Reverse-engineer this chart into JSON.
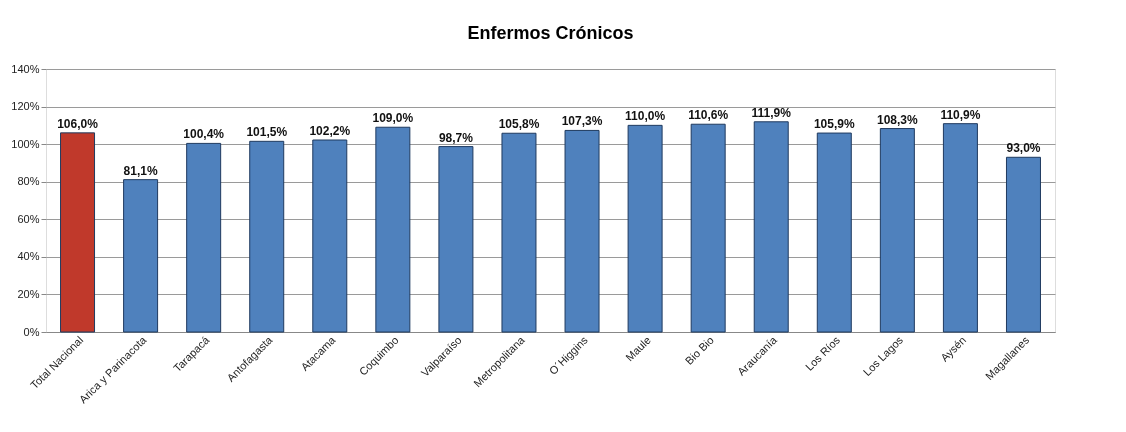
{
  "chart_data": {
    "type": "bar",
    "title": "Enfermos Crónicos",
    "categories": [
      "Total Nacional",
      "Arica y Parinacota",
      "Tarapacá",
      "Antofagasta",
      "Atacama",
      "Coquimbo",
      "Valparaíso",
      "Metropolitana",
      "O´Higgins",
      "Maule",
      "Bio Bio",
      "Araucanía",
      "Los Ríos",
      "Los Lagos",
      "Aysén",
      "Magallanes"
    ],
    "values": [
      106.0,
      81.1,
      100.4,
      101.5,
      102.2,
      109.0,
      98.7,
      105.8,
      107.3,
      110.0,
      110.6,
      111.9,
      105.9,
      108.3,
      110.9,
      93.0
    ],
    "value_labels": [
      "106,0%",
      "81,1%",
      "100,4%",
      "101,5%",
      "102,2%",
      "109,0%",
      "98,7%",
      "105,8%",
      "107,3%",
      "110,0%",
      "110,6%",
      "111,9%",
      "105,9%",
      "108,3%",
      "110,9%",
      "93,0%"
    ],
    "colors": [
      "#c0392b",
      "#4f81bd",
      "#4f81bd",
      "#4f81bd",
      "#4f81bd",
      "#4f81bd",
      "#4f81bd",
      "#4f81bd",
      "#4f81bd",
      "#4f81bd",
      "#4f81bd",
      "#4f81bd",
      "#4f81bd",
      "#4f81bd",
      "#4f81bd",
      "#4f81bd"
    ],
    "ylim": [
      0,
      140
    ],
    "yticks": [
      {
        "value": 0,
        "label": "0%"
      },
      {
        "value": 20,
        "label": "20%"
      },
      {
        "value": 40,
        "label": "40%"
      },
      {
        "value": 60,
        "label": "60%"
      },
      {
        "value": 80,
        "label": "80%"
      },
      {
        "value": 100,
        "label": "100%"
      },
      {
        "value": 120,
        "label": "120%"
      },
      {
        "value": 140,
        "label": "140%"
      }
    ],
    "grid": "y"
  }
}
